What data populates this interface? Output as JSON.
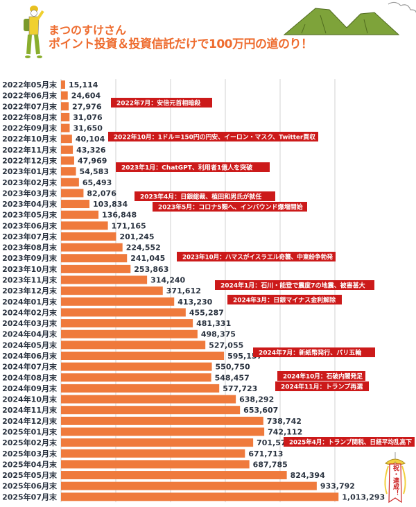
{
  "title": {
    "line1": "まつのすけさん",
    "line2": "ポイント投資＆投資信託だけで100万円の道のり！"
  },
  "badge_text": "祝・達成！",
  "colors": {
    "bar": "#ef7a3c",
    "title": "#ee6c2f",
    "annotation_bg": "#cc1a1a",
    "label": "#2a3340",
    "grid": "#d0d0d0"
  },
  "chart_data": {
    "type": "bar",
    "orientation": "horizontal",
    "xlim": [
      0,
      1000000
    ],
    "grid": true,
    "categories": [
      "2022年05月末",
      "2022年06月末",
      "2022年07月末",
      "2022年08月末",
      "2022年09月末",
      "2022年10月末",
      "2022年11月末",
      "2022年12月末",
      "2023年01月末",
      "2023年02月末",
      "2023年03月末",
      "2023年04月末",
      "2023年05月末",
      "2023年06月末",
      "2023年07月末",
      "2023年08月末",
      "2023年09月末",
      "2023年10月末",
      "2023年11月末",
      "2023年12月末",
      "2024年01月末",
      "2024年02月末",
      "2024年03月末",
      "2024年04月末",
      "2024年05月末",
      "2024年06月末",
      "2024年07月末",
      "2024年08月末",
      "2024年09月末",
      "2024年10月末",
      "2024年11月末",
      "2024年12月末",
      "2025年01月末",
      "2025年02月末",
      "2025年03月末",
      "2025年04月末",
      "2025年05月末",
      "2025年06月末",
      "2025年07月末"
    ],
    "values": [
      15114,
      24604,
      27976,
      31076,
      31650,
      40104,
      43326,
      47969,
      54583,
      65493,
      82076,
      103834,
      136848,
      171165,
      201245,
      224552,
      241045,
      253863,
      314240,
      371612,
      413230,
      455287,
      481331,
      498375,
      527055,
      595157,
      550750,
      548457,
      577723,
      638292,
      653607,
      738742,
      742112,
      701573,
      671713,
      687785,
      824394,
      933792,
      1013293
    ],
    "value_labels": [
      "15,114",
      "24,604",
      "27,976",
      "31,076",
      "31,650",
      "40,104",
      "43,326",
      "47,969",
      "54,583",
      "65,493",
      "82,076",
      "103,834",
      "136,848",
      "171,165",
      "201,245",
      "224,552",
      "241,045",
      "253,863",
      "314,240",
      "371,612",
      "413,230",
      "455,287",
      "481,331",
      "498,375",
      "527,055",
      "595,157",
      "550,750",
      "548,457",
      "577,723",
      "638,292",
      "653,607",
      "738,742",
      "742,112",
      "701,573",
      "671,713",
      "687,785",
      "824,394",
      "933,792",
      "1,013,293"
    ],
    "annotations": [
      {
        "text": "2022年7月：安倍元首相暗殺"
      },
      {
        "text": "2022年10月：1ドル＝150円の円安、イーロン・マスク、Twitter買収"
      },
      {
        "text": "2023年1月：ChatGPT、利用者1億人を突破"
      },
      {
        "text": "2023年4月：日銀総裁、植田和男氏が就任"
      },
      {
        "text": "2023年5月：コロナ5類へ、インバウンド爆増開始"
      },
      {
        "text": "2023年10月：ハマスがイスラエル奇襲、中東紛争勃発"
      },
      {
        "text": "2024年1月：石川・能登で震度7の地震、被害甚大"
      },
      {
        "text": "2024年3月：日銀マイナス金利解除"
      },
      {
        "text": "2024年7月：新紙幣発行、パリ五輪"
      },
      {
        "text": "2024年10月：石破内閣発足"
      },
      {
        "text": "2024年11月：トランプ再選"
      },
      {
        "text": "2025年4月：トランプ関税、日経平均乱高下"
      }
    ]
  }
}
